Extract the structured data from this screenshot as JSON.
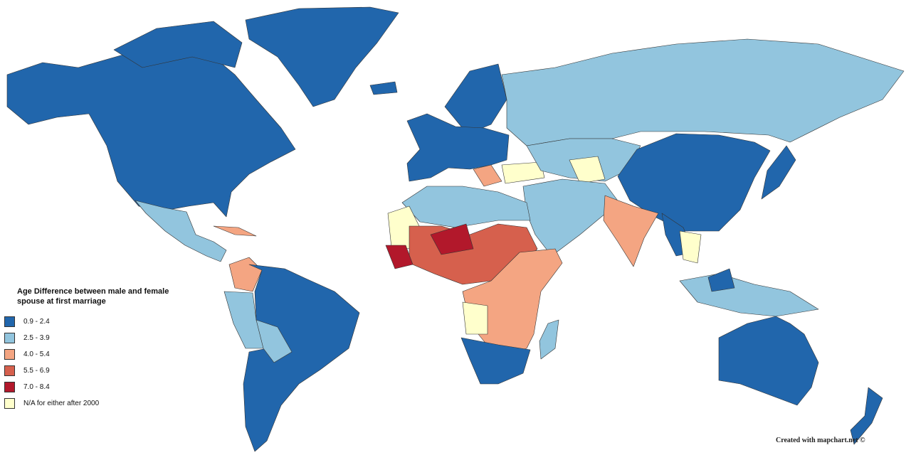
{
  "legend": {
    "title": "Age Difference between male and female spouse at first marriage",
    "items": [
      {
        "label": "0.9 - 2.4",
        "color": "#2166ac"
      },
      {
        "label": "2.5 - 3.9",
        "color": "#92c5de"
      },
      {
        "label": "4.0 - 5.4",
        "color": "#f4a582"
      },
      {
        "label": "5.5 - 6.9",
        "color": "#d6604d"
      },
      {
        "label": "7.0 - 8.4",
        "color": "#b2182b"
      },
      {
        "label": "N/A for either after 2000",
        "color": "#ffffcc"
      }
    ]
  },
  "credit": "Created with mapchart.net ©"
}
